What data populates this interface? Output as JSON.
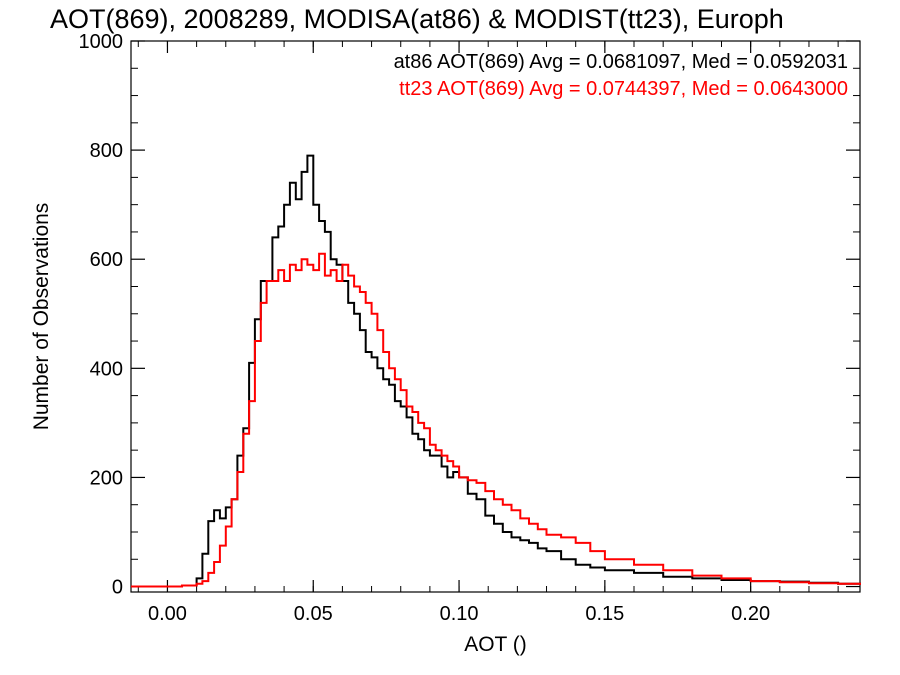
{
  "chart_data": {
    "type": "line",
    "title": "AOT(869), 2008289, MODISA(at86) & MODIST(tt23), Europh",
    "xlabel": "AOT ()",
    "ylabel": "Number of Observations",
    "xlim": [
      -0.0125,
      0.2375
    ],
    "ylim": [
      -10,
      1000
    ],
    "xticks": [
      "0.00",
      "0.05",
      "0.10",
      "0.15",
      "0.20"
    ],
    "yticks": [
      "0",
      "200",
      "400",
      "600",
      "800",
      "1000"
    ],
    "grid": false,
    "step": "histogram",
    "annotations": [
      {
        "text": "at86 AOT(869) Avg = 0.0681097, Med = 0.0592031",
        "color": "#000000"
      },
      {
        "text": "tt23 AOT(869) Avg = 0.0744397, Med = 0.0643000",
        "color": "#ff0000"
      }
    ],
    "series": [
      {
        "color": "#000000",
        "x": [
          -0.0125,
          0.005,
          0.01,
          0.012,
          0.014,
          0.016,
          0.018,
          0.02,
          0.022,
          0.024,
          0.026,
          0.028,
          0.03,
          0.032,
          0.034,
          0.036,
          0.038,
          0.04,
          0.042,
          0.044,
          0.046,
          0.048,
          0.05,
          0.052,
          0.054,
          0.056,
          0.058,
          0.06,
          0.062,
          0.064,
          0.066,
          0.068,
          0.07,
          0.072,
          0.074,
          0.076,
          0.078,
          0.08,
          0.082,
          0.084,
          0.086,
          0.088,
          0.09,
          0.092,
          0.094,
          0.096,
          0.098,
          0.1,
          0.103,
          0.106,
          0.109,
          0.112,
          0.115,
          0.118,
          0.121,
          0.124,
          0.127,
          0.13,
          0.135,
          0.14,
          0.145,
          0.15,
          0.16,
          0.17,
          0.18,
          0.19,
          0.2,
          0.21,
          0.22,
          0.23,
          0.2375
        ],
        "y": [
          0,
          2,
          15,
          60,
          120,
          140,
          125,
          145,
          160,
          240,
          290,
          410,
          490,
          560,
          560,
          640,
          660,
          700,
          740,
          710,
          760,
          790,
          700,
          670,
          650,
          600,
          590,
          560,
          520,
          500,
          470,
          430,
          420,
          400,
          380,
          370,
          340,
          330,
          310,
          280,
          270,
          250,
          240,
          240,
          220,
          200,
          210,
          200,
          170,
          160,
          130,
          115,
          100,
          90,
          85,
          80,
          70,
          65,
          50,
          40,
          35,
          30,
          25,
          18,
          15,
          12,
          10,
          9,
          7,
          5,
          3
        ]
      },
      {
        "color": "#ff0000",
        "x": [
          -0.0125,
          0.005,
          0.01,
          0.012,
          0.014,
          0.016,
          0.018,
          0.02,
          0.022,
          0.024,
          0.026,
          0.028,
          0.03,
          0.032,
          0.034,
          0.036,
          0.038,
          0.04,
          0.042,
          0.044,
          0.046,
          0.048,
          0.05,
          0.052,
          0.054,
          0.056,
          0.058,
          0.06,
          0.062,
          0.064,
          0.066,
          0.068,
          0.07,
          0.072,
          0.074,
          0.076,
          0.078,
          0.08,
          0.082,
          0.084,
          0.086,
          0.088,
          0.09,
          0.092,
          0.094,
          0.096,
          0.098,
          0.1,
          0.103,
          0.106,
          0.109,
          0.112,
          0.115,
          0.118,
          0.121,
          0.124,
          0.127,
          0.13,
          0.135,
          0.14,
          0.145,
          0.15,
          0.16,
          0.17,
          0.18,
          0.19,
          0.2,
          0.21,
          0.22,
          0.23,
          0.2375
        ],
        "y": [
          0,
          2,
          5,
          10,
          25,
          45,
          75,
          110,
          160,
          210,
          280,
          340,
          450,
          520,
          560,
          560,
          580,
          560,
          590,
          580,
          600,
          590,
          580,
          610,
          570,
          580,
          560,
          590,
          570,
          550,
          540,
          520,
          500,
          470,
          430,
          400,
          380,
          360,
          330,
          320,
          300,
          290,
          260,
          250,
          240,
          230,
          220,
          200,
          195,
          190,
          175,
          160,
          150,
          140,
          125,
          115,
          105,
          95,
          90,
          80,
          65,
          50,
          40,
          30,
          20,
          15,
          10,
          8,
          6,
          5,
          3
        ]
      }
    ]
  }
}
